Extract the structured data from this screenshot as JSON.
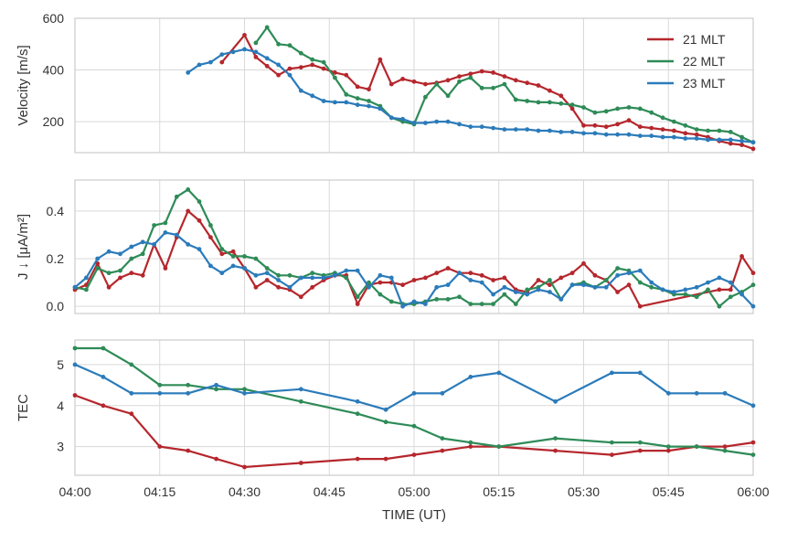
{
  "colors": {
    "grid": "#d9d9d9",
    "frame": "#cccccc",
    "text": "#333333"
  },
  "chart_data": {
    "type": "line",
    "x_axis": {
      "label": "TIME (UT)",
      "range": [
        "04:00",
        "06:00"
      ],
      "ticks": [
        "04:00",
        "04:15",
        "04:30",
        "04:45",
        "05:00",
        "05:15",
        "05:30",
        "05:45",
        "06:00"
      ]
    },
    "legend": {
      "placement": "top-right",
      "entries": [
        {
          "name": "21 MLT",
          "color": "#b5272d"
        },
        {
          "name": "22 MLT",
          "color": "#2e8b57"
        },
        {
          "name": "23 MLT",
          "color": "#2b7bba"
        }
      ]
    },
    "panels": [
      {
        "id": "velocity",
        "ylabel": "Velocity [m/s]",
        "ylim": [
          80,
          600
        ],
        "yticks": [
          200,
          400,
          600
        ],
        "grid": true,
        "markers": true,
        "series": [
          {
            "name": "21 MLT",
            "color": "#b5272d",
            "x": [
              "04:26",
              "04:30",
              "04:32",
              "04:34",
              "04:36",
              "04:38",
              "04:40",
              "04:42",
              "04:44",
              "04:46",
              "04:48",
              "04:50",
              "04:52",
              "04:54",
              "04:56",
              "04:58",
              "05:00",
              "05:02",
              "05:04",
              "05:06",
              "05:08",
              "05:10",
              "05:12",
              "05:14",
              "05:16",
              "05:18",
              "05:20",
              "05:22",
              "05:24",
              "05:26",
              "05:28",
              "05:30",
              "05:32",
              "05:34",
              "05:36",
              "05:38",
              "05:40",
              "05:42",
              "05:44",
              "05:46",
              "05:48",
              "05:50",
              "05:52",
              "05:54",
              "05:56",
              "05:58",
              "06:00"
            ],
            "y": [
              430,
              535,
              450,
              415,
              380,
              405,
              410,
              420,
              405,
              390,
              380,
              335,
              325,
              440,
              345,
              365,
              355,
              345,
              350,
              360,
              375,
              385,
              395,
              390,
              375,
              360,
              350,
              340,
              320,
              300,
              250,
              185,
              185,
              180,
              190,
              205,
              180,
              175,
              170,
              165,
              155,
              150,
              140,
              125,
              115,
              110,
              95
            ]
          },
          {
            "name": "22 MLT",
            "color": "#2e8b57",
            "x": [
              "04:32",
              "04:34",
              "04:36",
              "04:38",
              "04:40",
              "04:42",
              "04:44",
              "04:46",
              "04:48",
              "04:50",
              "04:52",
              "04:54",
              "04:56",
              "04:58",
              "05:00",
              "05:02",
              "05:04",
              "05:06",
              "05:08",
              "05:10",
              "05:12",
              "05:14",
              "05:16",
              "05:18",
              "05:20",
              "05:22",
              "05:24",
              "05:26",
              "05:28",
              "05:30",
              "05:32",
              "05:34",
              "05:36",
              "05:38",
              "05:40",
              "05:42",
              "05:44",
              "05:46",
              "05:48",
              "05:50",
              "05:52",
              "05:54",
              "05:56",
              "05:58",
              "06:00"
            ],
            "y": [
              505,
              565,
              500,
              495,
              465,
              440,
              430,
              370,
              305,
              290,
              280,
              260,
              215,
              200,
              190,
              295,
              345,
              300,
              355,
              370,
              330,
              330,
              345,
              285,
              280,
              275,
              275,
              270,
              265,
              255,
              235,
              240,
              250,
              255,
              250,
              235,
              215,
              200,
              185,
              170,
              165,
              165,
              160,
              140,
              120
            ]
          },
          {
            "name": "23 MLT",
            "color": "#2b7bba",
            "x": [
              "04:20",
              "04:22",
              "04:24",
              "04:26",
              "04:28",
              "04:30",
              "04:32",
              "04:34",
              "04:36",
              "04:38",
              "04:40",
              "04:42",
              "04:44",
              "04:46",
              "04:48",
              "04:50",
              "04:52",
              "04:54",
              "04:56",
              "04:58",
              "05:00",
              "05:02",
              "05:04",
              "05:06",
              "05:08",
              "05:10",
              "05:12",
              "05:14",
              "05:16",
              "05:18",
              "05:20",
              "05:22",
              "05:24",
              "05:26",
              "05:28",
              "05:30",
              "05:32",
              "05:34",
              "05:36",
              "05:38",
              "05:40",
              "05:42",
              "05:44",
              "05:46",
              "05:48",
              "05:50",
              "05:52",
              "05:54",
              "05:56",
              "05:58",
              "06:00"
            ],
            "y": [
              390,
              420,
              430,
              460,
              470,
              480,
              470,
              445,
              420,
              380,
              320,
              300,
              280,
              275,
              275,
              265,
              260,
              250,
              215,
              210,
              195,
              195,
              200,
              200,
              190,
              180,
              180,
              175,
              170,
              170,
              170,
              165,
              165,
              160,
              160,
              155,
              155,
              150,
              150,
              150,
              145,
              145,
              140,
              140,
              135,
              135,
              130,
              130,
              130,
              125,
              120
            ]
          }
        ]
      },
      {
        "id": "current",
        "ylabel": "J ↓ [μA/m²]",
        "ylim": [
          -0.03,
          0.53
        ],
        "yticks": [
          0.0,
          0.2,
          0.4
        ],
        "tick_labels": [
          "0.0",
          "0.2",
          "0.4"
        ],
        "grid": true,
        "markers": true,
        "series": [
          {
            "name": "21 MLT",
            "color": "#b5272d",
            "x": [
              "04:00",
              "04:02",
              "04:04",
              "04:06",
              "04:08",
              "04:10",
              "04:12",
              "04:14",
              "04:16",
              "04:18",
              "04:20",
              "04:22",
              "04:24",
              "04:26",
              "04:28",
              "04:30",
              "04:32",
              "04:34",
              "04:36",
              "04:38",
              "04:40",
              "04:42",
              "04:44",
              "04:46",
              "04:48",
              "04:50",
              "04:52",
              "04:54",
              "04:56",
              "04:58",
              "05:00",
              "05:02",
              "05:04",
              "05:06",
              "05:08",
              "05:10",
              "05:12",
              "05:14",
              "05:16",
              "05:18",
              "05:20",
              "05:22",
              "05:24",
              "05:26",
              "05:28",
              "05:30",
              "05:32",
              "05:34",
              "05:36",
              "05:38",
              "05:40",
              "05:54",
              "05:56",
              "05:58",
              "06:00"
            ],
            "y": [
              0.07,
              0.09,
              0.18,
              0.08,
              0.12,
              0.14,
              0.13,
              0.26,
              0.16,
              0.29,
              0.4,
              0.36,
              0.29,
              0.22,
              0.23,
              0.16,
              0.08,
              0.11,
              0.08,
              0.07,
              0.04,
              0.08,
              0.11,
              0.13,
              0.13,
              0.01,
              0.09,
              0.1,
              0.1,
              0.09,
              0.11,
              0.12,
              0.14,
              0.16,
              0.14,
              0.14,
              0.13,
              0.11,
              0.12,
              0.07,
              0.06,
              0.11,
              0.09,
              0.12,
              0.14,
              0.18,
              0.13,
              0.11,
              0.06,
              0.09,
              0.0,
              0.07,
              0.07,
              0.21,
              0.14
            ]
          },
          {
            "name": "22 MLT",
            "color": "#2e8b57",
            "x": [
              "04:00",
              "04:02",
              "04:04",
              "04:06",
              "04:08",
              "04:10",
              "04:12",
              "04:14",
              "04:16",
              "04:18",
              "04:20",
              "04:22",
              "04:24",
              "04:26",
              "04:28",
              "04:30",
              "04:32",
              "04:34",
              "04:36",
              "04:38",
              "04:40",
              "04:42",
              "04:44",
              "04:46",
              "04:48",
              "04:50",
              "04:52",
              "04:54",
              "04:56",
              "04:58",
              "05:00",
              "05:02",
              "05:04",
              "05:06",
              "05:08",
              "05:10",
              "05:12",
              "05:14",
              "05:16",
              "05:18",
              "05:20",
              "05:22",
              "05:24",
              "05:26",
              "05:28",
              "05:30",
              "05:32",
              "05:34",
              "05:36",
              "05:38",
              "05:40",
              "05:42",
              "05:44",
              "05:46",
              "05:48",
              "05:50",
              "05:52",
              "05:54",
              "05:56",
              "05:58",
              "06:00"
            ],
            "y": [
              0.08,
              0.07,
              0.16,
              0.14,
              0.15,
              0.2,
              0.22,
              0.34,
              0.35,
              0.46,
              0.49,
              0.44,
              0.34,
              0.24,
              0.21,
              0.21,
              0.2,
              0.16,
              0.13,
              0.13,
              0.12,
              0.14,
              0.13,
              0.14,
              0.12,
              0.04,
              0.1,
              0.05,
              0.02,
              0.01,
              0.01,
              0.02,
              0.03,
              0.03,
              0.04,
              0.01,
              0.01,
              0.01,
              0.05,
              0.01,
              0.07,
              0.08,
              0.11,
              0.03,
              0.09,
              0.1,
              0.08,
              0.11,
              0.16,
              0.15,
              0.1,
              0.08,
              0.07,
              0.05,
              0.05,
              0.04,
              0.07,
              0.0,
              0.04,
              0.06,
              0.09
            ]
          },
          {
            "name": "23 MLT",
            "color": "#2b7bba",
            "x": [
              "04:00",
              "04:02",
              "04:04",
              "04:06",
              "04:08",
              "04:10",
              "04:12",
              "04:14",
              "04:16",
              "04:18",
              "04:20",
              "04:22",
              "04:24",
              "04:26",
              "04:28",
              "04:30",
              "04:32",
              "04:34",
              "04:36",
              "04:38",
              "04:40",
              "04:42",
              "04:44",
              "04:46",
              "04:48",
              "04:50",
              "04:52",
              "04:54",
              "04:56",
              "04:58",
              "05:00",
              "05:02",
              "05:04",
              "05:06",
              "05:08",
              "05:10",
              "05:12",
              "05:14",
              "05:16",
              "05:18",
              "05:20",
              "05:22",
              "05:24",
              "05:26",
              "05:28",
              "05:30",
              "05:32",
              "05:34",
              "05:36",
              "05:38",
              "05:40",
              "05:42",
              "05:44",
              "05:46",
              "05:48",
              "05:50",
              "05:52",
              "05:54",
              "05:56",
              "05:58",
              "06:00"
            ],
            "y": [
              0.08,
              0.12,
              0.2,
              0.23,
              0.22,
              0.25,
              0.27,
              0.26,
              0.31,
              0.3,
              0.26,
              0.24,
              0.17,
              0.14,
              0.17,
              0.16,
              0.13,
              0.14,
              0.11,
              0.08,
              0.12,
              0.12,
              0.12,
              0.13,
              0.15,
              0.15,
              0.08,
              0.13,
              0.12,
              0.0,
              0.02,
              0.01,
              0.08,
              0.09,
              0.14,
              0.11,
              0.1,
              0.05,
              0.08,
              0.06,
              0.05,
              0.07,
              0.06,
              0.03,
              0.09,
              0.09,
              0.08,
              0.08,
              0.13,
              0.14,
              0.15,
              0.1,
              0.07,
              0.06,
              0.07,
              0.08,
              0.1,
              0.12,
              0.1,
              0.05,
              0.0
            ]
          }
        ]
      },
      {
        "id": "tec",
        "ylabel": "TEC",
        "ylim": [
          2.3,
          5.6
        ],
        "yticks": [
          3,
          4,
          5
        ],
        "grid": true,
        "markers": true,
        "series": [
          {
            "name": "21 MLT",
            "color": "#b5272d",
            "x": [
              "04:00",
              "04:05",
              "04:10",
              "04:15",
              "04:20",
              "04:25",
              "04:30",
              "04:40",
              "04:50",
              "04:55",
              "05:00",
              "05:05",
              "05:10",
              "05:15",
              "05:25",
              "05:35",
              "05:40",
              "05:45",
              "05:50",
              "05:55",
              "06:00"
            ],
            "y": [
              4.25,
              4.0,
              3.8,
              3.0,
              2.9,
              2.7,
              2.5,
              2.6,
              2.7,
              2.7,
              2.8,
              2.9,
              3.0,
              3.0,
              2.9,
              2.8,
              2.9,
              2.9,
              3.0,
              3.0,
              3.1
            ]
          },
          {
            "name": "22 MLT",
            "color": "#2e8b57",
            "x": [
              "04:00",
              "04:05",
              "04:10",
              "04:15",
              "04:20",
              "04:25",
              "04:30",
              "04:40",
              "04:50",
              "04:55",
              "05:00",
              "05:05",
              "05:10",
              "05:15",
              "05:25",
              "05:35",
              "05:40",
              "05:45",
              "05:50",
              "05:55",
              "06:00"
            ],
            "y": [
              5.4,
              5.4,
              5.0,
              4.5,
              4.5,
              4.4,
              4.4,
              4.1,
              3.8,
              3.6,
              3.5,
              3.2,
              3.1,
              3.0,
              3.2,
              3.1,
              3.1,
              3.0,
              3.0,
              2.9,
              2.8
            ]
          },
          {
            "name": "23 MLT",
            "color": "#2b7bba",
            "x": [
              "04:00",
              "04:05",
              "04:10",
              "04:15",
              "04:20",
              "04:25",
              "04:30",
              "04:40",
              "04:50",
              "04:55",
              "05:00",
              "05:05",
              "05:10",
              "05:15",
              "05:25",
              "05:35",
              "05:40",
              "05:45",
              "05:50",
              "05:55",
              "06:00"
            ],
            "y": [
              5.0,
              4.7,
              4.3,
              4.3,
              4.3,
              4.5,
              4.3,
              4.4,
              4.1,
              3.9,
              4.3,
              4.3,
              4.7,
              4.8,
              4.1,
              4.8,
              4.8,
              4.3,
              4.3,
              4.3,
              4.0
            ]
          }
        ]
      }
    ]
  }
}
